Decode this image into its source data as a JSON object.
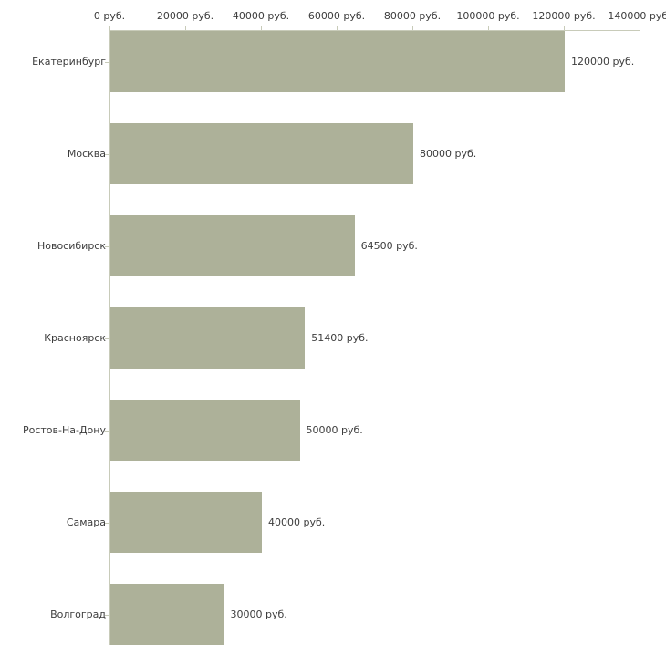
{
  "chart_data": {
    "type": "bar",
    "orientation": "horizontal",
    "title": "",
    "xlabel": "",
    "ylabel": "",
    "unit": "руб.",
    "categories": [
      "Екатеринбург",
      "Москва",
      "Новосибирск",
      "Красноярск",
      "Ростов-На-Дону",
      "Самара",
      "Волгоград"
    ],
    "values": [
      120000,
      80000,
      64500,
      51400,
      50000,
      40000,
      30000
    ],
    "value_labels": [
      "120000 руб.",
      "80000 руб.",
      "64500 руб.",
      "51400 руб.",
      "50000 руб.",
      "40000 руб.",
      "30000 руб."
    ],
    "x_ticks": [
      0,
      20000,
      40000,
      60000,
      80000,
      100000,
      120000,
      140000
    ],
    "x_tick_labels": [
      "0 руб.",
      "20000 руб.",
      "40000 руб.",
      "60000 руб.",
      "80000 руб.",
      "100000 руб.",
      "120000 руб.",
      "140000 руб."
    ],
    "xlim": [
      0,
      140000
    ],
    "grid": false,
    "legend": "none",
    "axis_position": "top",
    "colors": {
      "bar": "#adb199",
      "axis": "#c8cbb9",
      "text": "#3d3d3d",
      "background": "#ffffff"
    }
  }
}
